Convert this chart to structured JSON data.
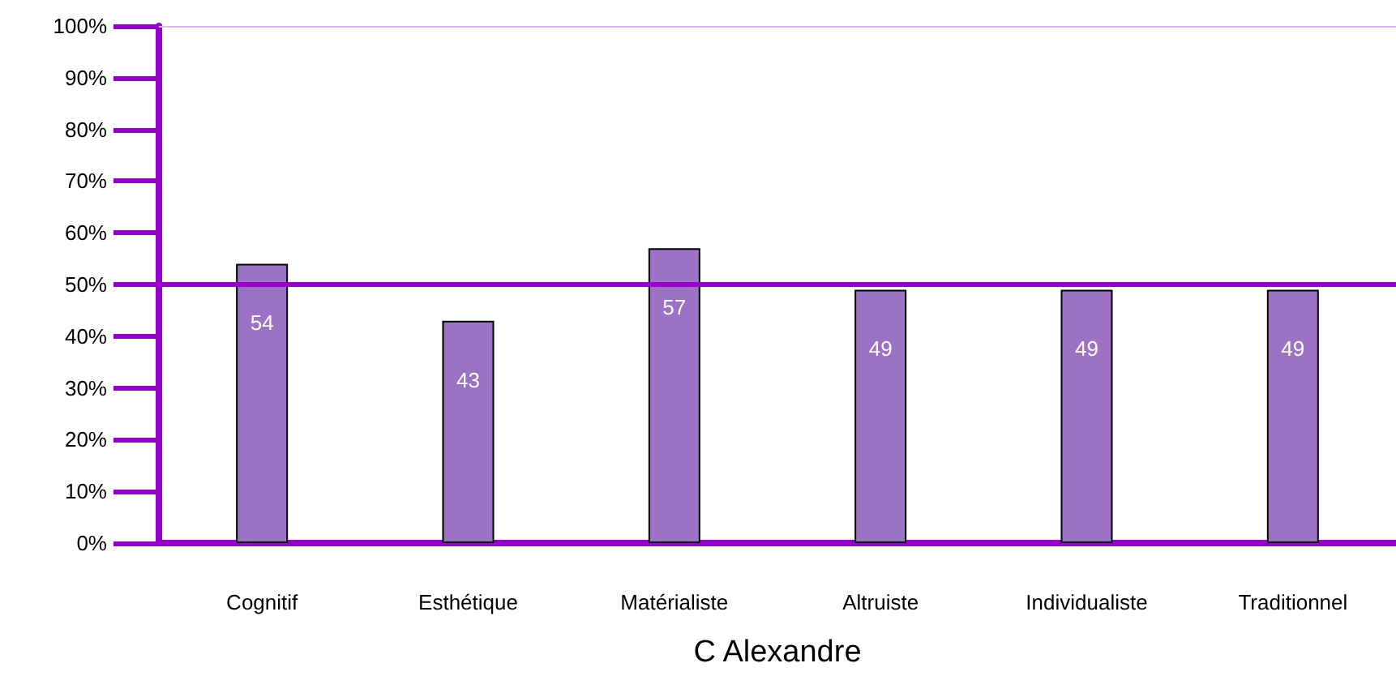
{
  "chart_data": {
    "type": "bar",
    "xlabel": "C Alexandre",
    "categories": [
      "Cognitif",
      "Esthétique",
      "Matérialiste",
      "Altruiste",
      "Individualiste",
      "Traditionnel"
    ],
    "values": [
      54,
      43,
      57,
      49,
      49,
      49
    ],
    "color": "#9b72c4",
    "data_labels": true,
    "ylim": [
      0,
      100
    ],
    "yticks": [
      {
        "value": 0,
        "label": "0%"
      },
      {
        "value": 10,
        "label": "10%"
      },
      {
        "value": 20,
        "label": "20%"
      },
      {
        "value": 30,
        "label": "30%"
      },
      {
        "value": 40,
        "label": "40%"
      },
      {
        "value": 50,
        "label": "50%"
      },
      {
        "value": 60,
        "label": "60%"
      },
      {
        "value": 70,
        "label": "70%"
      },
      {
        "value": 80,
        "label": "80%"
      },
      {
        "value": 90,
        "label": "90%"
      },
      {
        "value": 100,
        "label": "100%"
      }
    ],
    "ref_lines": [
      {
        "axis": "y",
        "value": 50,
        "color": "#9900cc"
      }
    ],
    "grid": false
  }
}
